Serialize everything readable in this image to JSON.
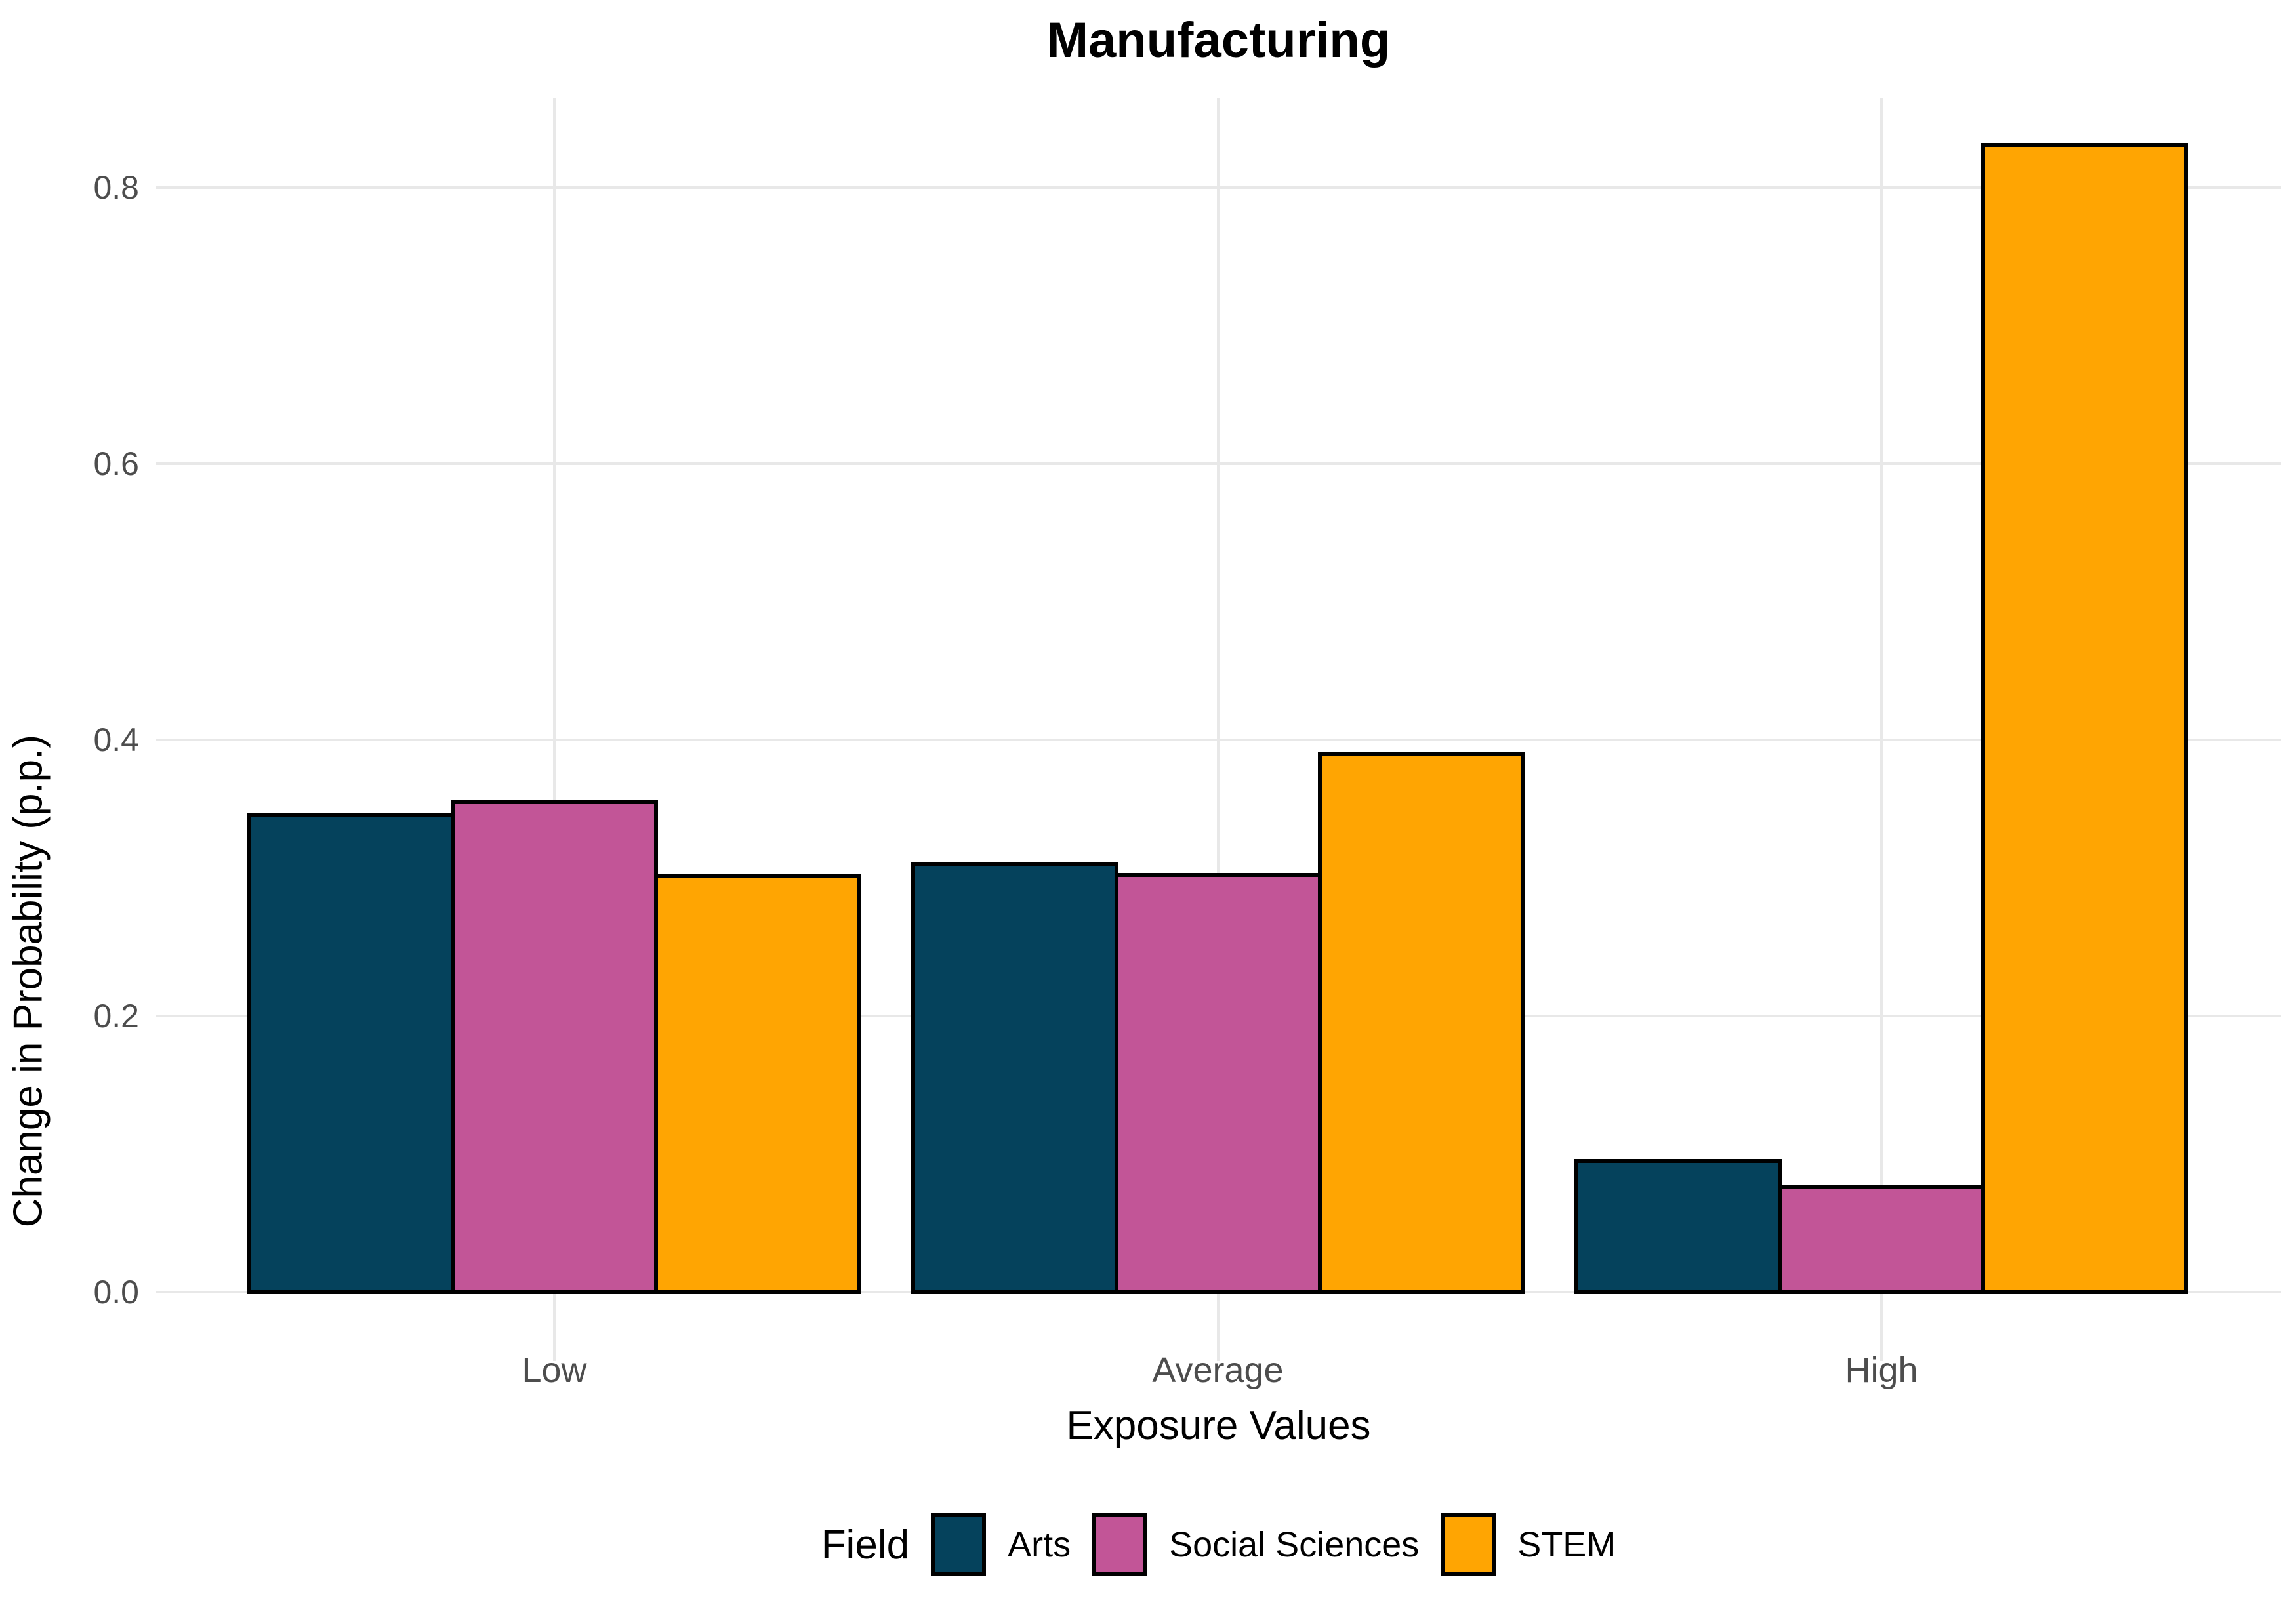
{
  "chart_data": {
    "type": "bar",
    "title": "Manufacturing",
    "xlabel": "Exposure Values",
    "ylabel": "Change in Probability (p.p.)",
    "categories": [
      "Low",
      "Average",
      "High"
    ],
    "series": [
      {
        "name": "Arts",
        "color": "#05425C",
        "values": [
          0.346,
          0.31,
          0.095
        ]
      },
      {
        "name": "Social Sciences",
        "color": "#C25597",
        "values": [
          0.355,
          0.302,
          0.076
        ]
      },
      {
        "name": "STEM",
        "color": "#FFA502",
        "values": [
          0.301,
          0.39,
          0.831
        ]
      }
    ],
    "yticks": [
      0.0,
      0.2,
      0.4,
      0.6,
      0.8
    ],
    "ytick_labels": [
      "0.0",
      "0.2",
      "0.4",
      "0.6",
      "0.8"
    ],
    "ylim": [
      0,
      0.865
    ],
    "grid": "major-only",
    "gridline_color": "#E8E8E8",
    "tick_label_color": "#4D4D4D",
    "bar_outline_color": "#000000",
    "background": "#FFFFFF",
    "legend_position": "bottom",
    "legend_title": "Field"
  }
}
